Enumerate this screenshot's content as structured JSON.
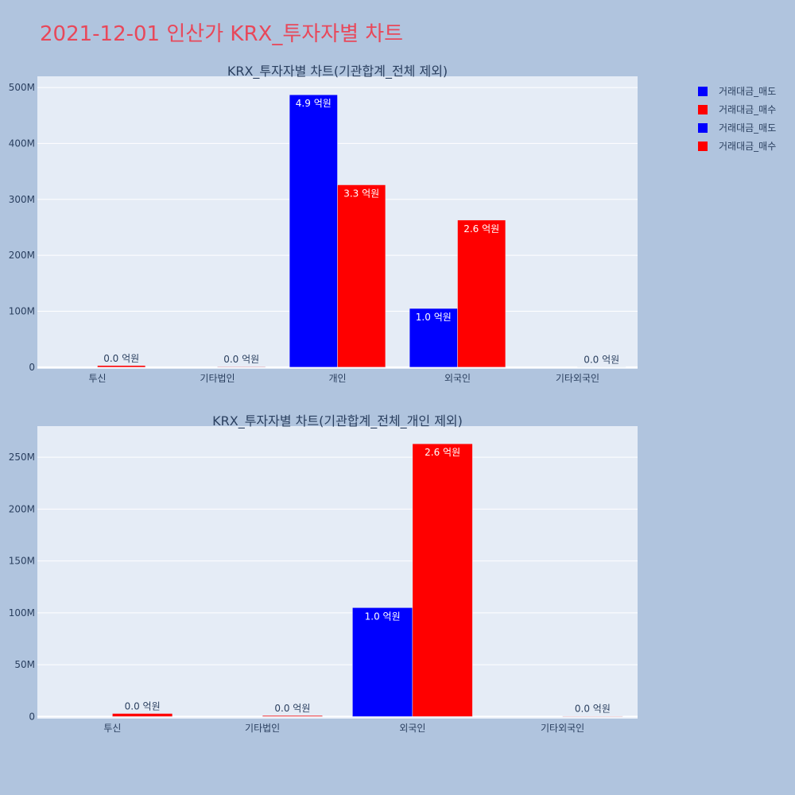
{
  "page": {
    "title": "2021-12-01 인산가 KRX_투자자별 차트"
  },
  "legend": {
    "items": [
      {
        "label": "거래대금_매도",
        "color": "#0000ff"
      },
      {
        "label": "거래대금_매수",
        "color": "#ff0000"
      },
      {
        "label": "거래대금_매도",
        "color": "#0000ff"
      },
      {
        "label": "거래대금_매수",
        "color": "#ff0000"
      }
    ]
  },
  "chart_data": [
    {
      "type": "bar",
      "title": "KRX_투자자별 차트(기관합계_전체 제외)",
      "categories": [
        "투신",
        "기타법인",
        "개인",
        "외국인",
        "기타외국인"
      ],
      "series": [
        {
          "name": "거래대금_매도",
          "color": "#0000ff",
          "values": [
            0,
            0,
            487000000,
            105000000,
            0
          ],
          "labels": [
            "",
            "",
            "4.9 억원",
            "1.0 억원",
            ""
          ]
        },
        {
          "name": "거래대금_매수",
          "color": "#ff0000",
          "values": [
            3000000,
            1000000,
            326000000,
            263000000,
            500000
          ],
          "labels": [
            "0.0 억원",
            "0.0 억원",
            "3.3 억원",
            "2.6 억원",
            "0.0 억원"
          ]
        }
      ],
      "yticks": [
        0,
        100000000,
        200000000,
        300000000,
        400000000,
        500000000
      ],
      "ytick_labels": [
        "0",
        "100M",
        "200M",
        "300M",
        "400M",
        "500M"
      ],
      "ylim": [
        -3000000,
        520000000
      ],
      "grid": true,
      "legend_position": "right"
    },
    {
      "type": "bar",
      "title": "KRX_투자자별 차트(기관합계_전체_개인 제외)",
      "categories": [
        "투신",
        "기타법인",
        "외국인",
        "기타외국인"
      ],
      "series": [
        {
          "name": "거래대금_매도",
          "color": "#0000ff",
          "values": [
            0,
            0,
            105000000,
            0
          ],
          "labels": [
            "",
            "",
            "1.0 억원",
            ""
          ]
        },
        {
          "name": "거래대금_매수",
          "color": "#ff0000",
          "values": [
            3000000,
            1000000,
            263000000,
            500000
          ],
          "labels": [
            "0.0 억원",
            "0.0 억원",
            "2.6 억원",
            "0.0 억원"
          ]
        }
      ],
      "yticks": [
        0,
        50000000,
        100000000,
        150000000,
        200000000,
        250000000
      ],
      "ytick_labels": [
        "0",
        "50M",
        "100M",
        "150M",
        "200M",
        "250M"
      ],
      "ylim": [
        -2000000,
        280000000
      ],
      "grid": true,
      "legend_position": "right"
    }
  ]
}
